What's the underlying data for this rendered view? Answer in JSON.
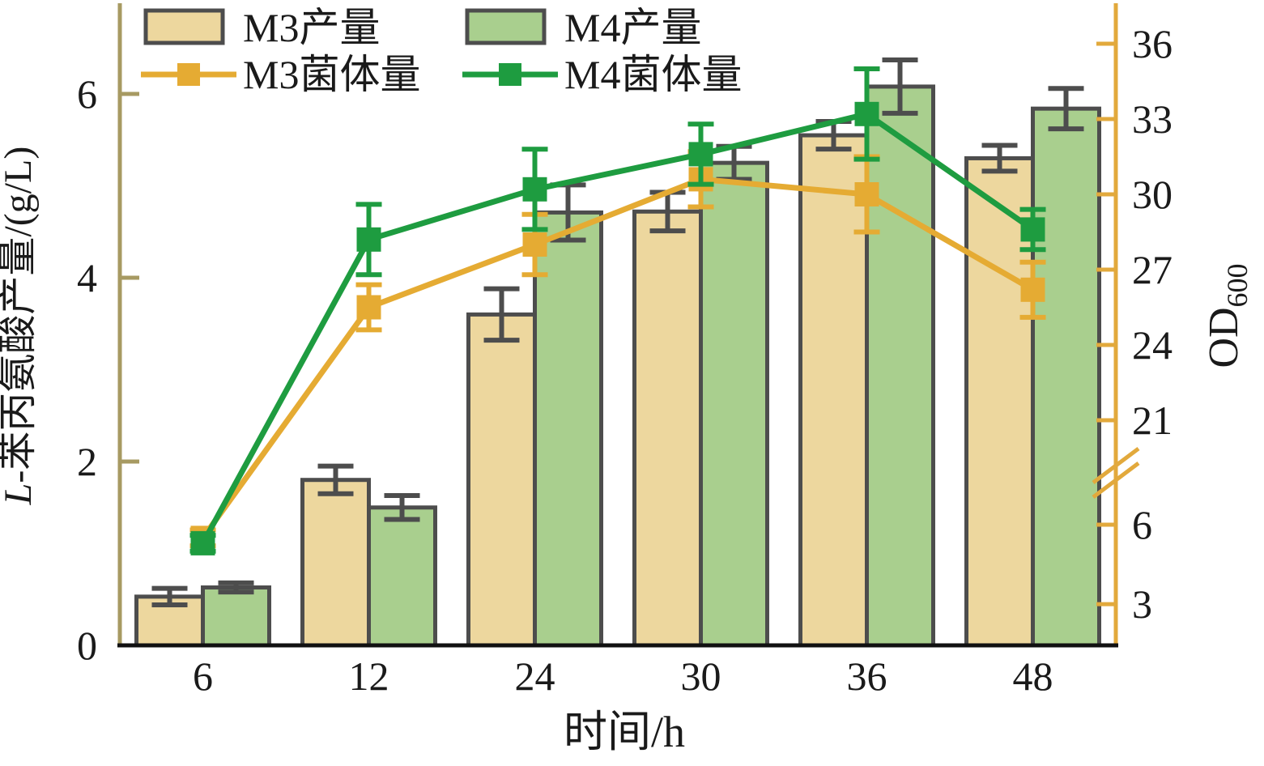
{
  "chart_data": {
    "type": "bar+line",
    "categories": [
      "6",
      "12",
      "24",
      "30",
      "36",
      "48"
    ],
    "x_axis": {
      "label": "时间/h"
    },
    "left_axis": {
      "label": "L-苯丙氨酸产量/(g/L)",
      "ticks": [
        0,
        2,
        4,
        6
      ],
      "range": [
        0,
        7
      ]
    },
    "right_axis": {
      "label": "OD",
      "label_subscript": "600",
      "broken": true,
      "upper_ticks": [
        21,
        24,
        27,
        30,
        33,
        36
      ],
      "lower_ticks": [
        6,
        3
      ],
      "upper_range": [
        19.5,
        37.6
      ],
      "lower_range": [
        1.5,
        6.5
      ]
    },
    "bar_series": [
      {
        "name": "M3产量",
        "color": "#EDD79E",
        "values": [
          0.53,
          1.8,
          3.6,
          4.72,
          5.55,
          5.3
        ],
        "errors": [
          0.09,
          0.15,
          0.28,
          0.21,
          0.15,
          0.14
        ]
      },
      {
        "name": "M4产量",
        "color": "#A9CF8E",
        "values": [
          0.63,
          1.5,
          4.71,
          5.25,
          6.08,
          5.84
        ],
        "errors": [
          0.05,
          0.13,
          0.3,
          0.18,
          0.29,
          0.22
        ]
      }
    ],
    "line_series": [
      {
        "name": "M3菌体量",
        "color": "#E5AB33",
        "values": [
          5.5,
          25.5,
          28.0,
          30.6,
          30.0,
          26.2
        ],
        "errors": [
          0.3,
          0.9,
          1.2,
          1.1,
          1.5,
          1.1
        ]
      },
      {
        "name": "M4菌体量",
        "color": "#1E9C40",
        "values": [
          5.3,
          28.2,
          30.2,
          31.6,
          33.2,
          28.6
        ],
        "errors": [
          0.3,
          1.4,
          1.6,
          1.2,
          1.8,
          0.8
        ]
      }
    ],
    "legend": {
      "position": "top-left-inside",
      "rows": 2
    }
  },
  "colors": {
    "background": "#FFFFFF",
    "bar_edge": "#4D4D4D",
    "left_spine": "#A79A62",
    "right_spine": "#E2A93C",
    "x_spine": "#111111",
    "axis_text": "#1A1A1A"
  }
}
